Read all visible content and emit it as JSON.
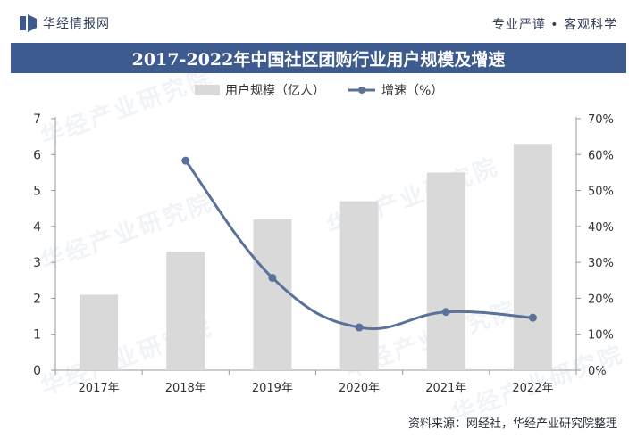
{
  "header": {
    "brand": "华经情报网",
    "motto": "专业严谨 • 客观科学"
  },
  "watermark": "华经产业研究院",
  "colors": {
    "bar": "#d9d9d9",
    "line": "#5a7299",
    "title_bg": "#3d5b8e"
  },
  "source": "资料来源：网经社，华经产业研究院整理",
  "chart_data": {
    "type": "bar",
    "title": "2017-2022年中国社区团购行业用户规模及增速",
    "categories": [
      "2017年",
      "2018年",
      "2019年",
      "2020年",
      "2021年",
      "2022年"
    ],
    "series": [
      {
        "name": "用户规模（亿人）",
        "type": "bar",
        "axis": "left",
        "values": [
          2.1,
          3.3,
          4.2,
          4.7,
          5.5,
          6.3
        ]
      },
      {
        "name": "增速（%）",
        "type": "line",
        "axis": "right",
        "values": [
          null,
          58.3,
          25.7,
          11.9,
          16.2,
          14.6
        ]
      }
    ],
    "ylim": [
      0,
      7
    ],
    "yticks": [
      "0",
      "1",
      "2",
      "3",
      "4",
      "5",
      "6",
      "7"
    ],
    "y2lim": [
      0,
      70
    ],
    "y2ticks": [
      "0%",
      "10%",
      "20%",
      "30%",
      "40%",
      "50%",
      "60%",
      "70%"
    ],
    "legend": "top-center",
    "grid": false
  }
}
